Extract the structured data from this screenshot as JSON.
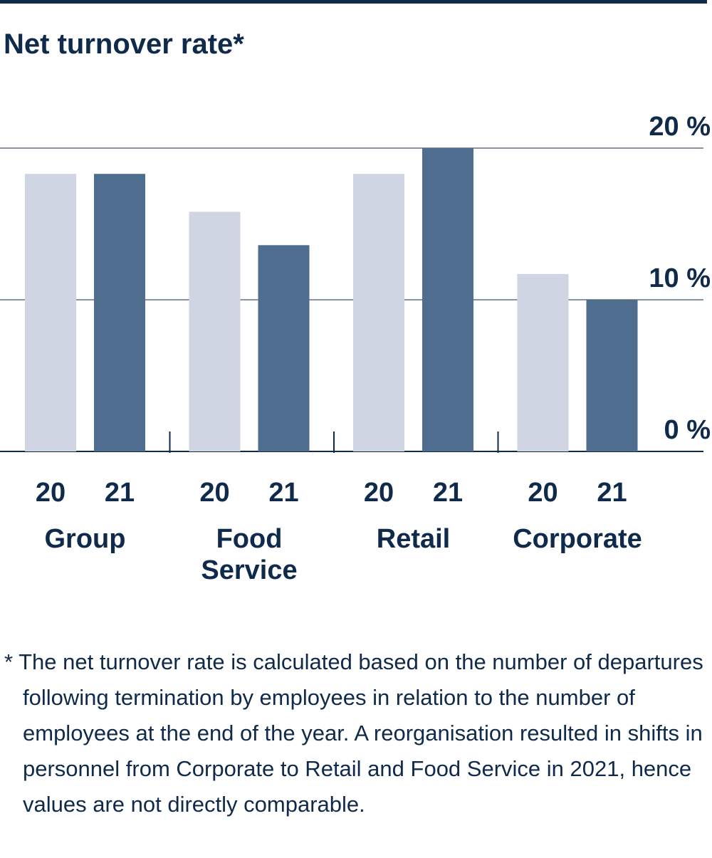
{
  "chart_data": {
    "type": "bar",
    "title": "Net turnover rate*",
    "categories": [
      "Group",
      "Food Service",
      "Retail",
      "Corporate"
    ],
    "series": [
      {
        "name": "20",
        "color": "#cfd5e3",
        "values": [
          18.3,
          15.8,
          18.3,
          11.7
        ]
      },
      {
        "name": "21",
        "color": "#4f6d8f",
        "values": [
          18.3,
          13.6,
          20.0,
          10.0
        ]
      }
    ],
    "ylim": [
      0,
      20
    ],
    "yticks": [
      {
        "value": 0,
        "label": "0 %"
      },
      {
        "value": 10,
        "label": "10 %"
      },
      {
        "value": 20,
        "label": "20 %"
      }
    ],
    "grid": true,
    "footnote": "* The net turnover rate is calculated based on the number of departures following termination by employees in relation to the number of employees at the end of the year. A reorganisation resulted in shifts in personnel from Corporate to Retail and Food Service in 2021, hence values are not directly comparable."
  }
}
